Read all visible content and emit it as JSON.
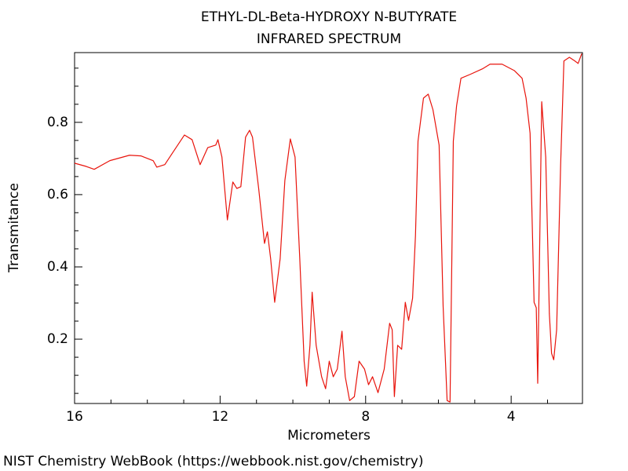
{
  "chart_data": {
    "type": "line",
    "title": "ETHYL-DL-Beta-HYDROXY N-BUTYRATE",
    "subtitle": "INFRARED SPECTRUM",
    "x_label": "Micrometers",
    "y_label": "Transmitance",
    "source": "NIST Chemistry WebBook (https://webbook.nist.gov/chemistry)",
    "xlim": [
      16,
      2.04
    ],
    "ylim": [
      0.022,
      0.993
    ],
    "xticks": [
      16,
      12,
      8,
      4
    ],
    "yticks": [
      0.2,
      0.4,
      0.6,
      0.8
    ],
    "minor_xticks": [
      15,
      14,
      13,
      11,
      10,
      9,
      7,
      6,
      5,
      3
    ],
    "minor_yticks": [
      0.05,
      0.1,
      0.15,
      0.25,
      0.3,
      0.35,
      0.45,
      0.5,
      0.55,
      0.65,
      0.7,
      0.75,
      0.85,
      0.9,
      0.95
    ],
    "x": [
      16.0,
      15.68,
      15.46,
      15.03,
      14.49,
      14.17,
      13.84,
      13.74,
      13.52,
      13.31,
      12.98,
      12.77,
      12.55,
      12.34,
      12.12,
      12.06,
      11.95,
      11.8,
      11.65,
      11.54,
      11.43,
      11.3,
      11.19,
      11.11,
      10.94,
      10.78,
      10.7,
      10.61,
      10.5,
      10.35,
      10.22,
      10.07,
      9.94,
      9.81,
      9.69,
      9.62,
      9.53,
      9.47,
      9.36,
      9.21,
      9.1,
      9.0,
      8.89,
      8.78,
      8.65,
      8.56,
      8.44,
      8.31,
      8.18,
      8.03,
      7.92,
      7.81,
      7.66,
      7.49,
      7.34,
      7.27,
      7.21,
      7.12,
      7.01,
      6.91,
      6.82,
      6.71,
      6.63,
      6.56,
      6.41,
      6.28,
      6.15,
      5.98,
      5.87,
      5.76,
      5.68,
      5.59,
      5.5,
      5.38,
      5.12,
      4.79,
      4.58,
      4.25,
      3.91,
      3.7,
      3.59,
      3.48,
      3.37,
      3.31,
      3.27,
      3.16,
      3.05,
      2.95,
      2.89,
      2.83,
      2.75,
      2.64,
      2.55,
      2.4,
      2.25,
      2.16,
      2.06
    ],
    "series": [
      {
        "color": "#e8140c",
        "values": [
          0.687,
          0.678,
          0.67,
          0.694,
          0.709,
          0.707,
          0.694,
          0.676,
          0.683,
          0.715,
          0.765,
          0.752,
          0.683,
          0.73,
          0.737,
          0.752,
          0.704,
          0.53,
          0.635,
          0.617,
          0.622,
          0.759,
          0.778,
          0.759,
          0.617,
          0.465,
          0.497,
          0.422,
          0.302,
          0.422,
          0.639,
          0.754,
          0.704,
          0.422,
          0.139,
          0.07,
          0.183,
          0.33,
          0.183,
          0.096,
          0.063,
          0.139,
          0.096,
          0.117,
          0.222,
          0.096,
          0.03,
          0.041,
          0.139,
          0.117,
          0.074,
          0.096,
          0.052,
          0.117,
          0.244,
          0.226,
          0.041,
          0.183,
          0.172,
          0.302,
          0.252,
          0.313,
          0.487,
          0.748,
          0.867,
          0.878,
          0.835,
          0.737,
          0.291,
          0.03,
          0.026,
          0.748,
          0.846,
          0.922,
          0.933,
          0.948,
          0.961,
          0.961,
          0.943,
          0.922,
          0.867,
          0.77,
          0.302,
          0.287,
          0.078,
          0.857,
          0.704,
          0.27,
          0.161,
          0.143,
          0.226,
          0.683,
          0.97,
          0.98,
          0.97,
          0.963,
          0.99
        ]
      }
    ]
  }
}
